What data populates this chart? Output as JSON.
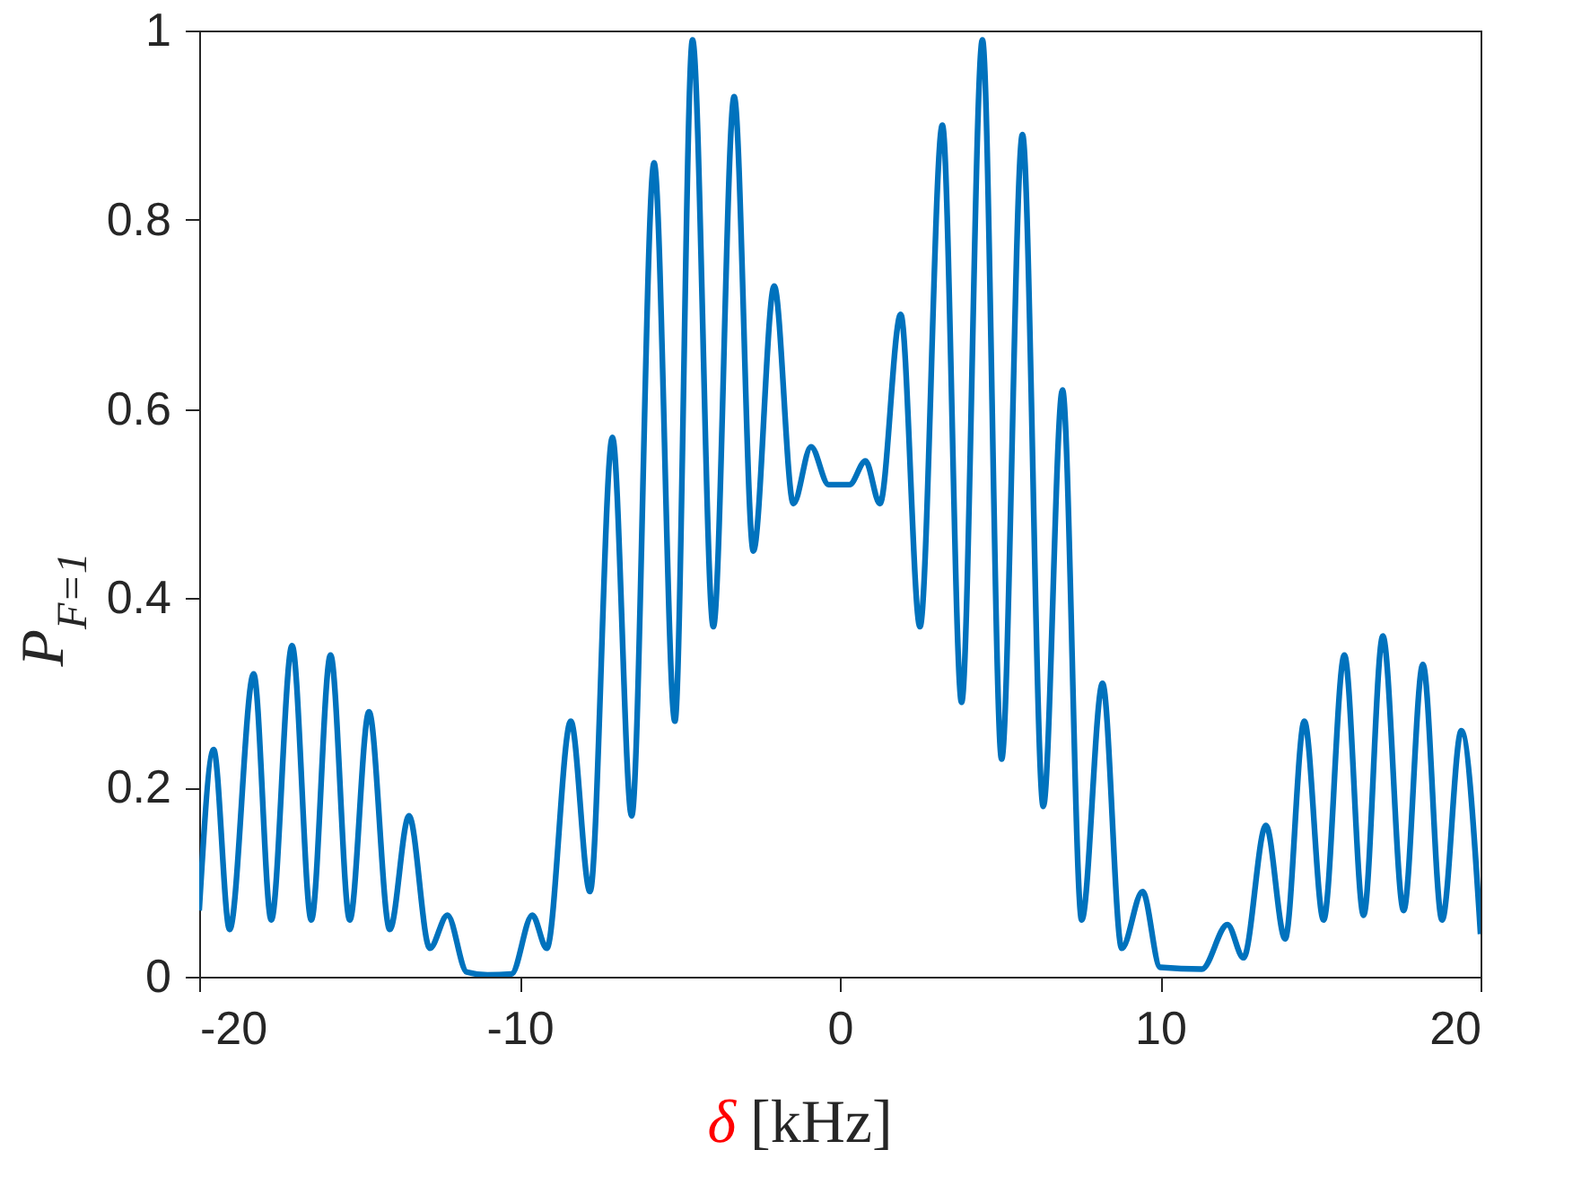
{
  "chart_data": {
    "type": "line",
    "xlabel": "δ [kHz]",
    "ylabel": "P$_{F=1}$",
    "xlim": [
      -20,
      20
    ],
    "xticks": [
      -20,
      -10,
      0,
      10,
      20
    ],
    "ylim": [
      0,
      1
    ],
    "yticks": [
      0,
      0.2,
      0.4,
      0.6,
      0.8,
      1
    ],
    "grid": false,
    "line_style": "solid",
    "series": [
      {
        "color": "#0072bd",
        "x": [
          -20,
          -19.55,
          -19.05,
          -18.3,
          -17.75,
          -17.1,
          -16.5,
          -15.9,
          -15.3,
          -14.7,
          -14.05,
          -13.45,
          -12.8,
          -12.25,
          -11.65,
          -11.0,
          -10.25,
          -9.6,
          -9.15,
          -8.4,
          -7.8,
          -7.1,
          -6.5,
          -5.8,
          -5.15,
          -4.6,
          -3.95,
          -3.3,
          -2.7,
          -2.05,
          -1.45,
          -0.9,
          -0.35,
          0,
          0.3,
          0.8,
          1.25,
          1.9,
          2.5,
          3.2,
          3.8,
          4.45,
          5.05,
          5.7,
          6.35,
          6.95,
          7.55,
          8.2,
          8.8,
          9.45,
          10.0,
          11.3,
          12.1,
          12.6,
          13.3,
          13.9,
          14.5,
          15.1,
          15.75,
          16.35,
          16.95,
          17.6,
          18.2,
          18.8,
          19.4,
          20
        ],
        "values": [
          0.07,
          0.24,
          0.05,
          0.32,
          0.06,
          0.35,
          0.06,
          0.34,
          0.06,
          0.28,
          0.05,
          0.17,
          0.03,
          0.065,
          0.005,
          0.002,
          0.003,
          0.065,
          0.03,
          0.27,
          0.09,
          0.57,
          0.17,
          0.86,
          0.27,
          0.99,
          0.37,
          0.93,
          0.45,
          0.73,
          0.5,
          0.56,
          0.52,
          0.52,
          0.52,
          0.545,
          0.5,
          0.7,
          0.37,
          0.9,
          0.29,
          0.99,
          0.23,
          0.89,
          0.18,
          0.62,
          0.06,
          0.31,
          0.03,
          0.09,
          0.01,
          0.008,
          0.055,
          0.02,
          0.16,
          0.04,
          0.27,
          0.06,
          0.34,
          0.065,
          0.36,
          0.07,
          0.33,
          0.06,
          0.26,
          0.045
        ]
      }
    ]
  }
}
